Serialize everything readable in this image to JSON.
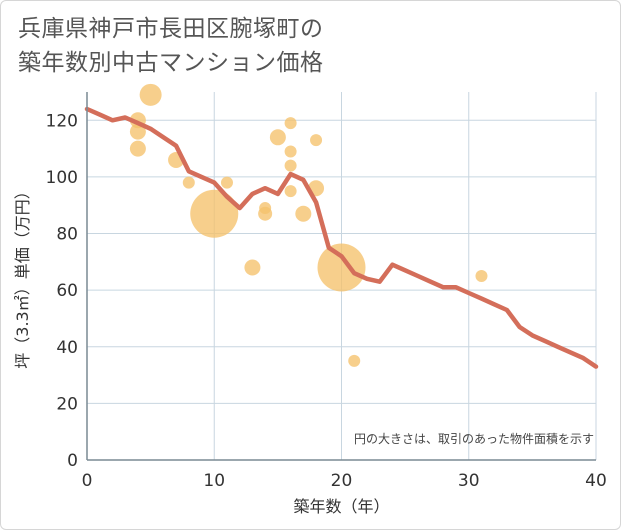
{
  "title_lines": [
    "兵庫県神戸市長田区腕塚町の",
    "築年数別中古マンション価格"
  ],
  "chart_data": {
    "type": "scatter",
    "xlabel": "築年数（年）",
    "ylabel": "坪（3.3㎡）単価（万円）",
    "xlim": [
      0,
      40
    ],
    "ylim": [
      0,
      130
    ],
    "x_ticks": [
      0,
      10,
      20,
      30,
      40
    ],
    "y_ticks": [
      0,
      20,
      40,
      60,
      80,
      100,
      120
    ],
    "grid": true,
    "annotation": "円の大きさは、取引のあった物件面積を示す",
    "colors": {
      "bubble": "#f5c16c",
      "line": "#d46e5a",
      "grid": "#c8d6e0",
      "axis": "#7a8a94"
    },
    "points": [
      {
        "x": 4,
        "y": 120,
        "size": 8
      },
      {
        "x": 4,
        "y": 116,
        "size": 8
      },
      {
        "x": 4,
        "y": 110,
        "size": 8
      },
      {
        "x": 5,
        "y": 129,
        "size": 11
      },
      {
        "x": 7,
        "y": 106,
        "size": 8
      },
      {
        "x": 8,
        "y": 98,
        "size": 6
      },
      {
        "x": 10,
        "y": 87,
        "size": 24
      },
      {
        "x": 11,
        "y": 98,
        "size": 6
      },
      {
        "x": 13,
        "y": 68,
        "size": 8
      },
      {
        "x": 14,
        "y": 87,
        "size": 7
      },
      {
        "x": 14,
        "y": 89,
        "size": 6
      },
      {
        "x": 15,
        "y": 114,
        "size": 8
      },
      {
        "x": 16,
        "y": 119,
        "size": 6
      },
      {
        "x": 16,
        "y": 109,
        "size": 6
      },
      {
        "x": 16,
        "y": 104,
        "size": 6
      },
      {
        "x": 16,
        "y": 95,
        "size": 6
      },
      {
        "x": 17,
        "y": 87,
        "size": 8
      },
      {
        "x": 18,
        "y": 113,
        "size": 6
      },
      {
        "x": 18,
        "y": 96,
        "size": 8
      },
      {
        "x": 20,
        "y": 68,
        "size": 24
      },
      {
        "x": 21,
        "y": 35,
        "size": 6
      },
      {
        "x": 31,
        "y": 65,
        "size": 6
      }
    ],
    "trend": {
      "x": [
        0,
        1,
        2,
        3,
        4,
        5,
        6,
        7,
        8,
        9,
        10,
        11,
        12,
        13,
        14,
        15,
        16,
        17,
        18,
        19,
        20,
        21,
        22,
        23,
        24,
        25,
        26,
        27,
        28,
        29,
        30,
        31,
        32,
        33,
        34,
        35,
        36,
        37,
        38,
        39,
        40
      ],
      "y": [
        124,
        122,
        120,
        121,
        119,
        117,
        114,
        111,
        102,
        100,
        98,
        93,
        89,
        94,
        96,
        94,
        101,
        99,
        91,
        75,
        72,
        66,
        64,
        63,
        69,
        67,
        65,
        63,
        61,
        61,
        59,
        57,
        55,
        53,
        47,
        44,
        42,
        40,
        38,
        36,
        33
      ]
    }
  }
}
